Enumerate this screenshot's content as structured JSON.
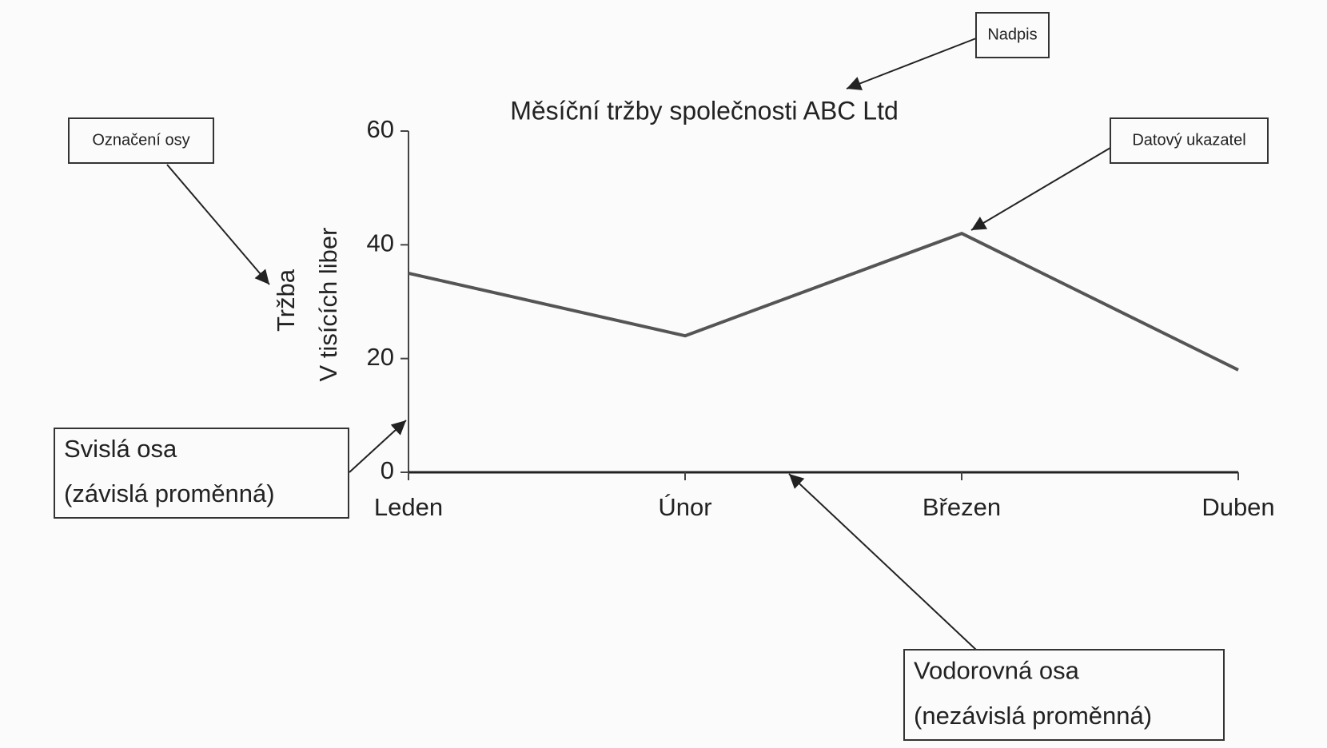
{
  "chart_data": {
    "type": "line",
    "title": "Měsíční tržby společnosti ABC Ltd",
    "ylabel": [
      "Tržba",
      "V tisících liber"
    ],
    "categories": [
      "Leden",
      "Únor",
      "Březen",
      "Duben"
    ],
    "series": [
      {
        "name": "Tržba",
        "color": "#555555",
        "values": [
          35,
          24,
          42,
          18
        ]
      }
    ],
    "ylim": [
      0,
      60
    ],
    "yticks": [
      0,
      20,
      40,
      60
    ],
    "grid": false,
    "annotations": [
      {
        "lines": [
          "Nadpis"
        ]
      },
      {
        "lines": [
          "Označení osy"
        ]
      },
      {
        "lines": [
          "Datový ukazatel"
        ]
      },
      {
        "lines": [
          "Svislá osa",
          "(závislá proměnná)"
        ]
      },
      {
        "lines": [
          "Vodorovná osa",
          "(nezávislá proměnná)"
        ]
      }
    ]
  }
}
